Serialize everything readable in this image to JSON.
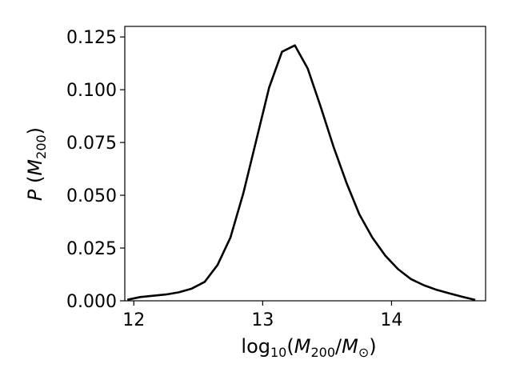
{
  "chart_data": {
    "type": "line",
    "xlim": [
      11.93,
      14.73
    ],
    "ylim": [
      0.0,
      0.13
    ],
    "x_ticks": [
      12,
      13,
      14
    ],
    "x_tick_labels": [
      "12",
      "13",
      "14"
    ],
    "y_ticks": [
      0.0,
      0.025,
      0.05,
      0.075,
      0.1,
      0.125
    ],
    "y_tick_labels": [
      "0.000",
      "0.025",
      "0.050",
      "0.075",
      "0.100",
      "0.125"
    ],
    "grid": false,
    "series": [
      {
        "color": "#000000",
        "x": [
          11.95,
          12.05,
          12.15,
          12.25,
          12.35,
          12.45,
          12.55,
          12.65,
          12.75,
          12.85,
          12.95,
          13.05,
          13.15,
          13.25,
          13.35,
          13.45,
          13.55,
          13.65,
          13.75,
          13.85,
          13.95,
          14.05,
          14.15,
          14.25,
          14.35,
          14.45,
          14.55,
          14.65
        ],
        "y": [
          0.0005,
          0.0018,
          0.0024,
          0.003,
          0.004,
          0.0058,
          0.009,
          0.017,
          0.03,
          0.051,
          0.076,
          0.101,
          0.118,
          0.121,
          0.11,
          0.092,
          0.073,
          0.056,
          0.041,
          0.03,
          0.0215,
          0.015,
          0.0103,
          0.0074,
          0.0052,
          0.0035,
          0.0019,
          0.0004
        ]
      }
    ]
  }
}
